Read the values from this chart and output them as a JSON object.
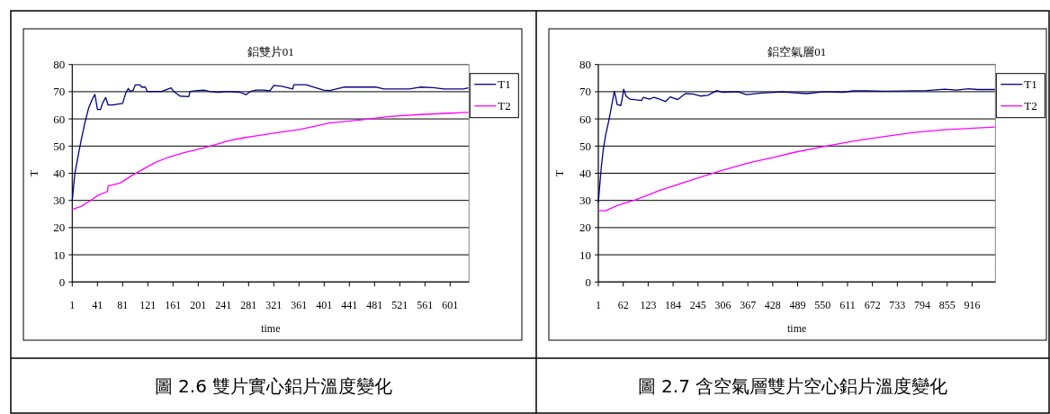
{
  "chart_data": [
    {
      "type": "line",
      "title": "鋁雙片01",
      "xlabel": "time",
      "ylabel": "T",
      "annotations": [
        "圖 2.6  雙片實心鋁片溫度變化"
      ],
      "legend": "right",
      "grid": "y",
      "xlim": [
        1,
        631
      ],
      "ylim": [
        0,
        80
      ],
      "yticks": [
        0,
        10,
        20,
        30,
        40,
        50,
        60,
        70,
        80
      ],
      "xticks": [
        1,
        41,
        81,
        121,
        161,
        201,
        241,
        281,
        321,
        361,
        401,
        441,
        481,
        521,
        561,
        601
      ],
      "series": [
        {
          "name": "T1",
          "color": "#000080",
          "x": [
            1,
            5,
            10,
            15,
            21,
            27,
            33,
            37,
            41,
            46,
            49,
            54,
            58,
            65,
            81,
            86,
            90,
            93,
            98,
            101,
            109,
            111,
            117,
            120,
            143,
            158,
            162,
            172,
            186,
            188,
            200,
            210,
            219,
            233,
            248,
            267,
            277,
            284,
            293,
            305,
            315,
            321,
            334,
            351,
            353,
            372,
            400,
            410,
            432,
            484,
            496,
            536,
            553,
            574,
            591,
            622,
            630
          ],
          "values": [
            29.8,
            39.7,
            46,
            52,
            58.5,
            64,
            67.3,
            69,
            63.5,
            63.5,
            65.7,
            67.9,
            65.1,
            65.1,
            65.7,
            69.5,
            71.2,
            70.1,
            70.6,
            72.5,
            72.5,
            71.7,
            71.7,
            70.1,
            70.1,
            71.4,
            70.1,
            68.4,
            68.2,
            70.1,
            70.4,
            70.6,
            70.1,
            69.8,
            70.1,
            69.8,
            68.9,
            70.1,
            70.6,
            70.6,
            70.3,
            72.3,
            72,
            71,
            72.6,
            72.6,
            70.6,
            70.4,
            71.7,
            71.7,
            71,
            71,
            71.7,
            71.5,
            71,
            71,
            71.4
          ]
        },
        {
          "name": "T2",
          "color": "#ff00ff",
          "x": [
            1,
            15,
            29,
            43,
            57,
            58,
            77,
            96,
            115,
            134,
            153,
            177,
            201,
            224,
            248,
            272,
            296,
            329,
            362,
            410,
            458,
            505,
            553,
            600,
            630
          ],
          "values": [
            26.7,
            27.8,
            29.8,
            32,
            33.3,
            35.3,
            36.4,
            39.2,
            41.7,
            44.1,
            45.8,
            47.5,
            48.8,
            50.2,
            51.9,
            53,
            53.9,
            55,
            56.1,
            58.5,
            59.6,
            60.9,
            61.6,
            62.1,
            62.4
          ]
        }
      ]
    },
    {
      "type": "line",
      "title": "鋁空氣層01",
      "xlabel": "time",
      "ylabel": "T",
      "annotations": [
        "圖 2.7  含空氣層雙片空心鋁片溫度變化"
      ],
      "legend": "right",
      "grid": "y",
      "xlim": [
        1,
        973
      ],
      "ylim": [
        0,
        80
      ],
      "yticks": [
        0,
        10,
        20,
        30,
        40,
        50,
        60,
        70,
        80
      ],
      "xticks": [
        1,
        62,
        123,
        184,
        245,
        306,
        367,
        428,
        489,
        550,
        611,
        672,
        733,
        794,
        855,
        916
      ],
      "series": [
        {
          "name": "T1",
          "color": "#000080",
          "x": [
            1,
            8,
            13,
            19,
            27,
            34,
            40,
            43,
            47,
            56,
            60,
            63,
            69,
            78,
            93,
            107,
            111,
            126,
            137,
            151,
            166,
            177,
            195,
            214,
            232,
            251,
            269,
            291,
            306,
            342,
            364,
            401,
            452,
            511,
            555,
            599,
            625,
            658,
            702,
            805,
            849,
            878,
            907,
            929,
            972
          ],
          "values": [
            29.2,
            41.9,
            48.6,
            54.1,
            59.6,
            65.1,
            70.1,
            68.4,
            65.3,
            64.9,
            67.9,
            70.9,
            68.4,
            67.3,
            67,
            66.8,
            67.9,
            67.3,
            67.9,
            67.3,
            66.4,
            68.1,
            67.1,
            69.3,
            69.2,
            68.4,
            68.7,
            70.4,
            69.8,
            70,
            68.9,
            69.5,
            69.9,
            69.3,
            70,
            69.8,
            70.3,
            70.3,
            70.2,
            70.4,
            70.9,
            70.6,
            71.1,
            70.8,
            70.8
          ]
        },
        {
          "name": "T2",
          "color": "#ff00ff",
          "x": [
            1,
            19,
            47,
            93,
            151,
            225,
            298,
            372,
            430,
            481,
            555,
            628,
            702,
            775,
            849,
            972
          ],
          "values": [
            26.2,
            26.2,
            28.1,
            30.3,
            33.7,
            37.3,
            40.8,
            43.9,
            45.8,
            47.7,
            49.9,
            51.9,
            53.5,
            55,
            56,
            57
          ]
        }
      ]
    }
  ]
}
